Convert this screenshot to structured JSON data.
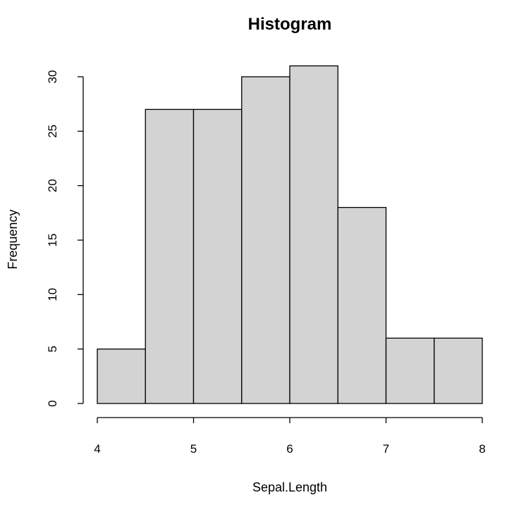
{
  "chart_data": {
    "type": "bar",
    "title": "Histogram",
    "xlabel": "Sepal.Length",
    "ylabel": "Frequency",
    "bins": [
      {
        "x0": 4.0,
        "x1": 4.5,
        "count": 5
      },
      {
        "x0": 4.5,
        "x1": 5.0,
        "count": 27
      },
      {
        "x0": 5.0,
        "x1": 5.5,
        "count": 27
      },
      {
        "x0": 5.5,
        "x1": 6.0,
        "count": 30
      },
      {
        "x0": 6.0,
        "x1": 6.5,
        "count": 31
      },
      {
        "x0": 6.5,
        "x1": 7.0,
        "count": 18
      },
      {
        "x0": 7.0,
        "x1": 7.5,
        "count": 6
      },
      {
        "x0": 7.5,
        "x1": 8.0,
        "count": 6
      }
    ],
    "xlim": [
      4,
      8
    ],
    "ylim": [
      0,
      30
    ],
    "x_ticks": [
      "4",
      "5",
      "6",
      "7",
      "8"
    ],
    "y_ticks": [
      "0",
      "5",
      "10",
      "15",
      "20",
      "25",
      "30"
    ],
    "grid": false,
    "colors": {
      "bar_fill": "#d3d3d3",
      "bar_stroke": "#000000"
    }
  }
}
